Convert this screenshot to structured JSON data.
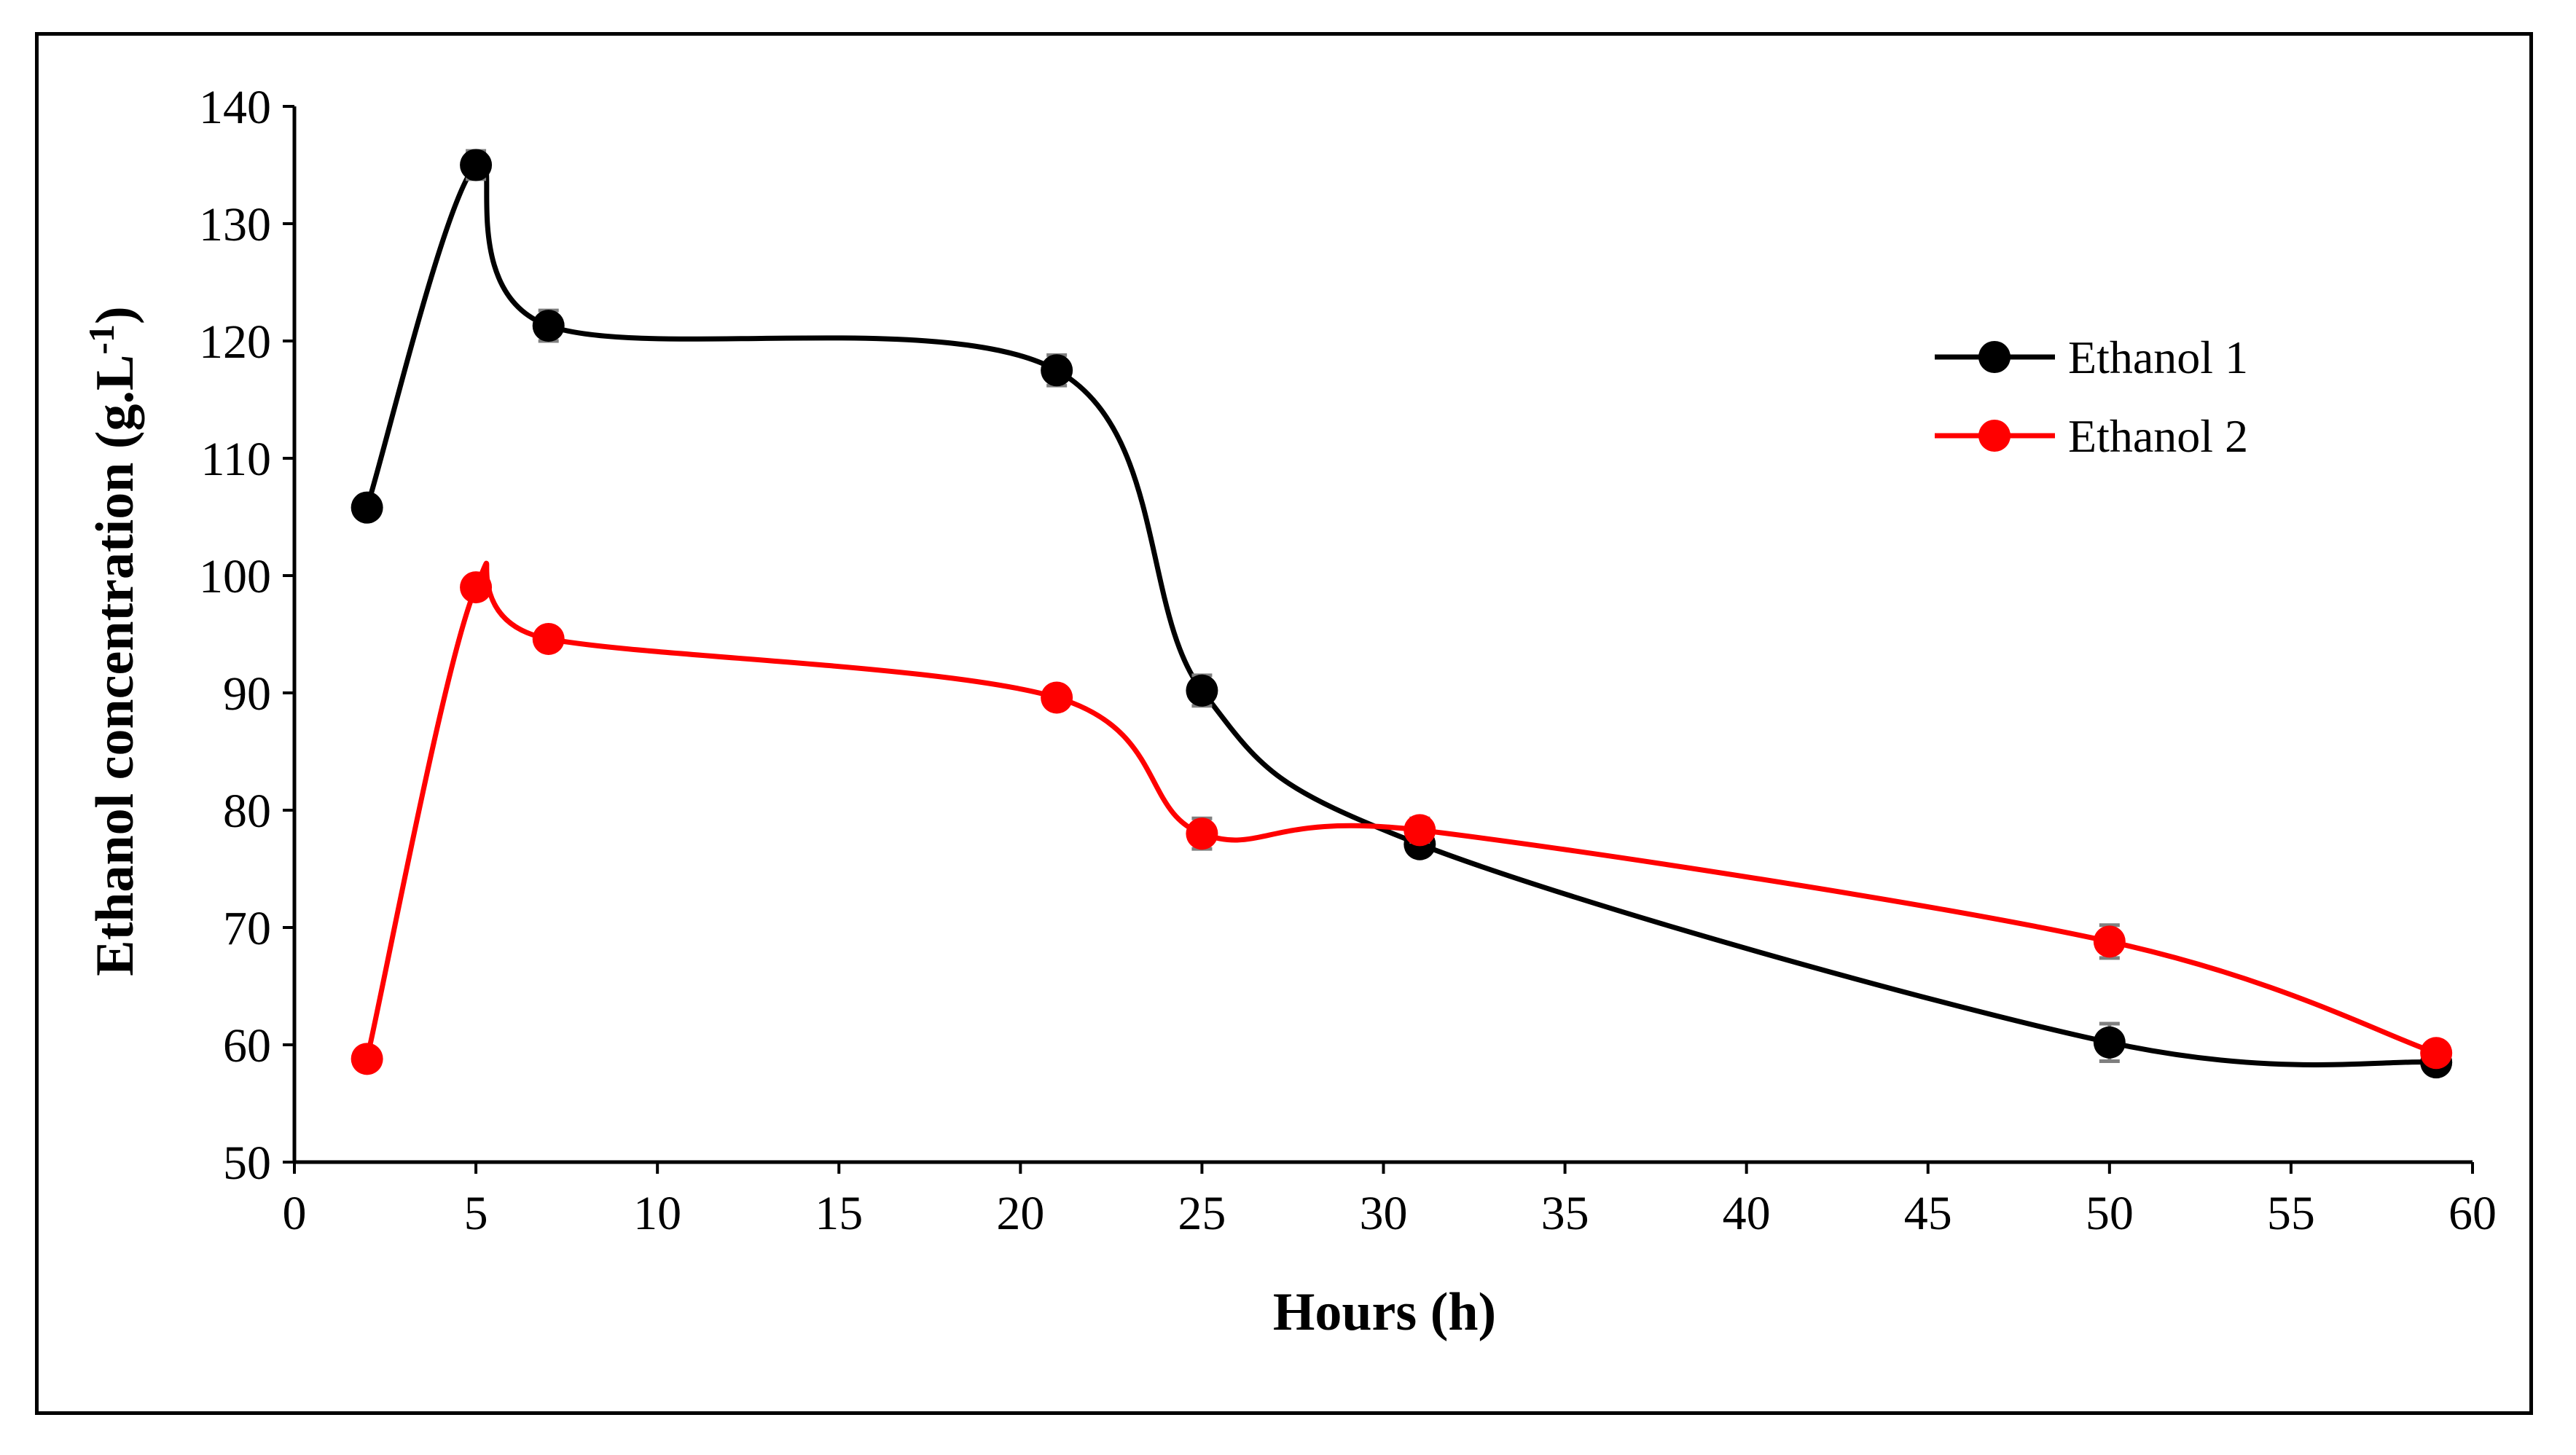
{
  "chart_data": {
    "type": "line",
    "title": "",
    "xlabel": "Hours (h)",
    "ylabel_main": "Ethanol concentration (g.L",
    "ylabel_sup": "-1",
    "ylabel_close": ")",
    "xlim": [
      0,
      60
    ],
    "ylim": [
      50,
      140
    ],
    "xticks": [
      0,
      5,
      10,
      15,
      20,
      25,
      30,
      35,
      40,
      45,
      50,
      55,
      60
    ],
    "yticks": [
      50,
      60,
      70,
      80,
      90,
      100,
      110,
      120,
      130,
      140
    ],
    "grid": false,
    "legend_position": "top-right",
    "series": [
      {
        "name": "Ethanol 1",
        "color": "#000000",
        "x": [
          2,
          5,
          7,
          21,
          25,
          31,
          50,
          59
        ],
        "y": [
          105.8,
          135.0,
          121.3,
          117.5,
          90.2,
          77.1,
          60.2,
          58.5
        ],
        "err": [
          0.6,
          1.2,
          1.3,
          1.3,
          1.3,
          0.8,
          1.6,
          0.8
        ]
      },
      {
        "name": "Ethanol 2",
        "color": "#ff0000",
        "x": [
          2,
          5,
          7,
          21,
          25,
          31,
          50,
          59
        ],
        "y": [
          58.8,
          99.0,
          94.6,
          89.6,
          78.0,
          78.3,
          68.8,
          59.3
        ],
        "err": [
          0.5,
          0.7,
          0.8,
          0.8,
          1.3,
          1.0,
          1.4,
          0.8
        ]
      }
    ]
  }
}
